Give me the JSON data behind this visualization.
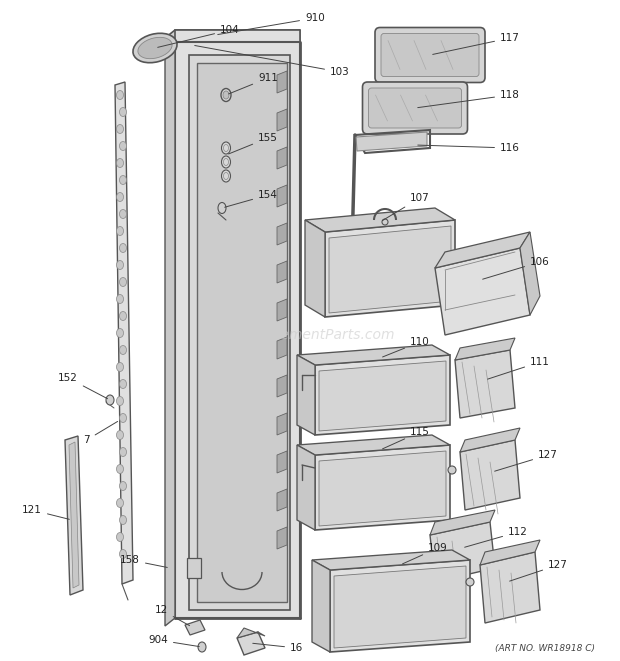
{
  "art_no": "(ART NO. WR18918 C)",
  "watermark": "eReplacementParts.com",
  "bg_color": "#ffffff",
  "lc": "#555555",
  "label_color": "#222222",
  "fs": 7.5
}
